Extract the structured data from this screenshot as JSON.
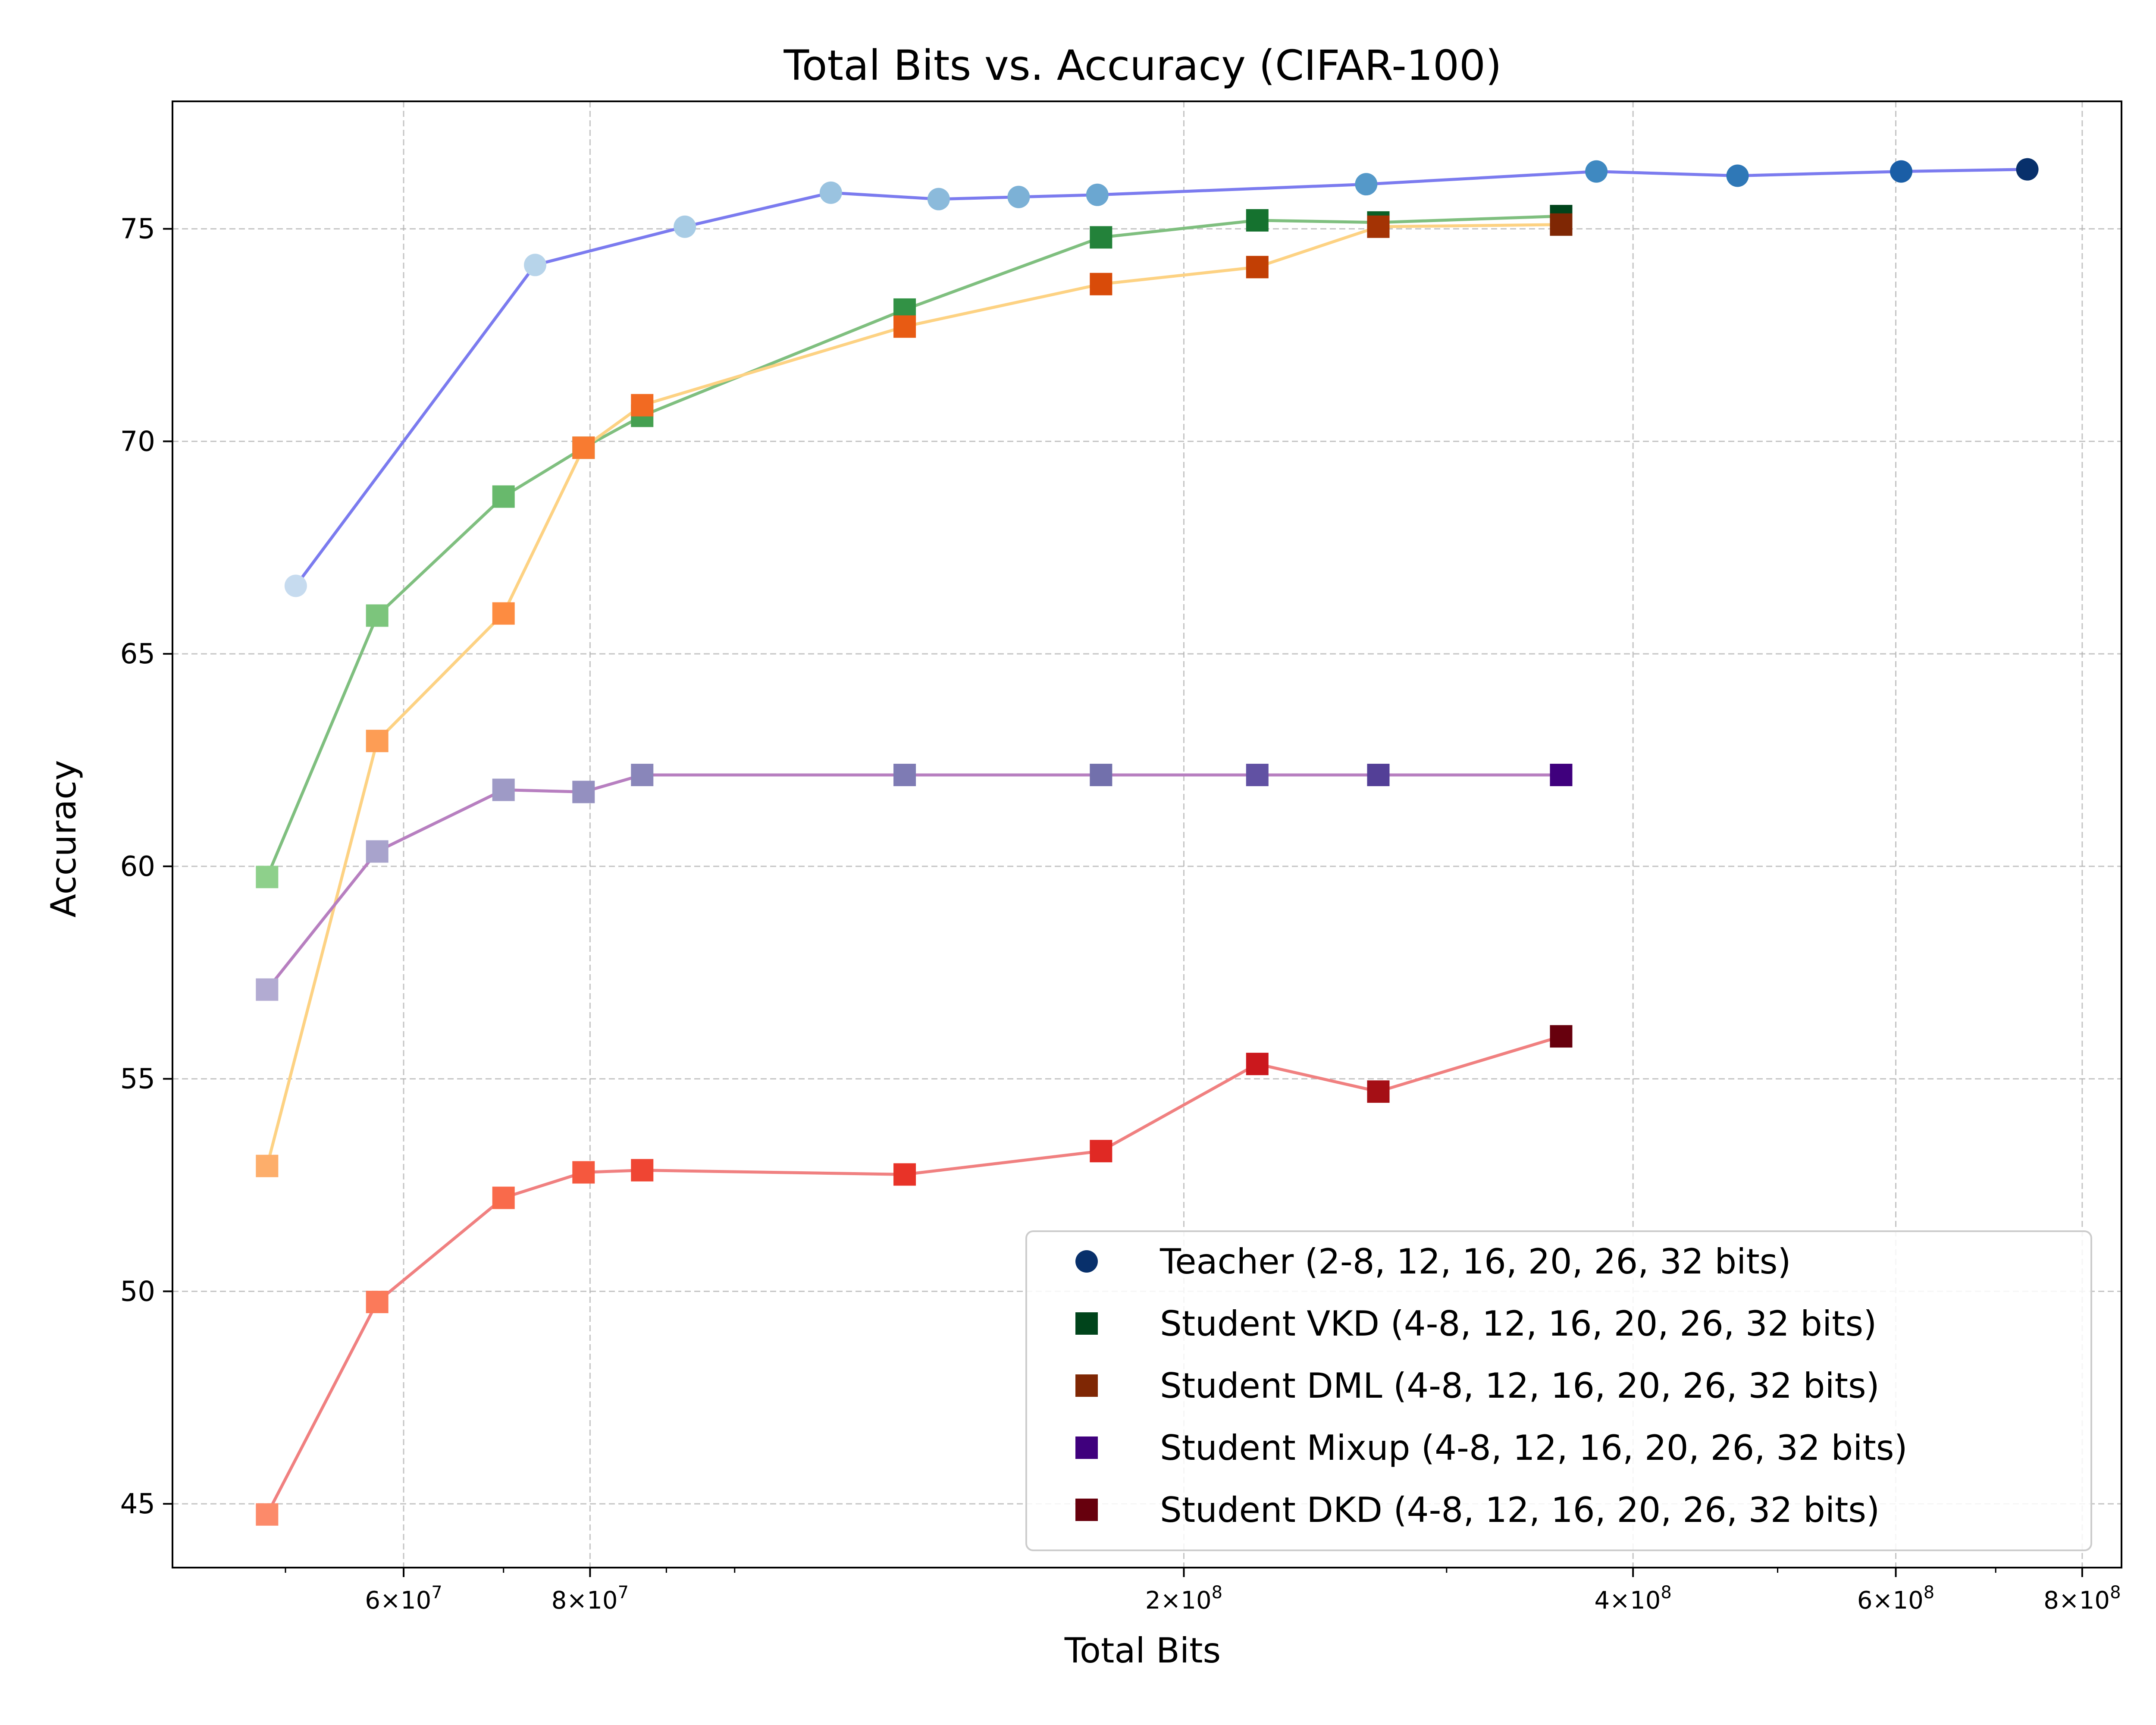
{
  "chart_data": {
    "type": "line",
    "title": "Total Bits vs. Accuracy (CIFAR-100)",
    "xlabel": "Total Bits",
    "ylabel": "Accuracy",
    "xscale": "log",
    "xlim": [
      42000000,
      850000000
    ],
    "ylim": [
      43.5,
      78.0
    ],
    "grid": true,
    "legend_position": "lower-right",
    "yticks": [
      45,
      50,
      55,
      60,
      65,
      70,
      75
    ],
    "xticks": [
      {
        "value": 60000000,
        "mant": "6",
        "exp": "7"
      },
      {
        "value": 80000000,
        "mant": "8",
        "exp": "7"
      },
      {
        "value": 200000000,
        "mant": "2",
        "exp": "8"
      },
      {
        "value": 400000000,
        "mant": "4",
        "exp": "8"
      },
      {
        "value": 600000000,
        "mant": "6",
        "exp": "8"
      },
      {
        "value": 800000000,
        "mant": "8",
        "exp": "8"
      }
    ],
    "series": [
      {
        "name": "Teacher (2-8, 12, 16, 20, 26, 32 bits)",
        "marker": "circle",
        "line_color": "#7b7bef",
        "legend_color": "#08306b",
        "x": [
          50800000,
          73500000,
          92600000,
          116000000,
          137000000,
          155000000,
          175000000,
          265000000,
          378000000,
          470000000,
          605000000,
          735000000
        ],
        "y": [
          66.6,
          74.15,
          75.05,
          75.85,
          75.7,
          75.75,
          75.8,
          76.05,
          76.35,
          76.25,
          76.35,
          76.4
        ],
        "colors": [
          "#c6dbef",
          "#b7d4ea",
          "#a8cce5",
          "#9ac3e0",
          "#8bbadb",
          "#7cb1d6",
          "#6ba7d1",
          "#5599c9",
          "#3f89c1",
          "#2f78b7",
          "#1a5ea6",
          "#08306b"
        ]
      },
      {
        "name": "Student VKD (4-8, 12, 16, 20, 26, 32 bits)",
        "marker": "square",
        "line_color": "#7fbf7f",
        "legend_color": "#00441b",
        "x": [
          48600000,
          57600000,
          70000000,
          79200000,
          86700000,
          130000000,
          176000000,
          224000000,
          270000000,
          358000000
        ],
        "y": [
          59.75,
          65.9,
          68.7,
          69.85,
          70.6,
          73.1,
          74.8,
          75.2,
          75.15,
          75.3
        ],
        "colors": [
          "#8ed08b",
          "#7cc57c",
          "#68b96c",
          "#55ad5e",
          "#45a051",
          "#329245",
          "#23823a",
          "#15722f",
          "#0b5f26",
          "#00441b"
        ]
      },
      {
        "name": "Student DML (4-8, 12, 16, 20, 26, 32 bits)",
        "marker": "square",
        "line_color": "#fdd283",
        "legend_color": "#7f2704",
        "x": [
          48600000,
          57600000,
          70000000,
          79200000,
          86700000,
          130000000,
          176000000,
          224000000,
          270000000,
          358000000
        ],
        "y": [
          52.95,
          62.95,
          65.95,
          69.85,
          70.85,
          72.7,
          73.7,
          74.1,
          75.05,
          75.1
        ],
        "colors": [
          "#fdae6b",
          "#fd9d55",
          "#fd8c41",
          "#f87b31",
          "#f26a22",
          "#e85b13",
          "#d94b09",
          "#c23f04",
          "#a43304",
          "#7f2704"
        ]
      },
      {
        "name": "Student Mixup (4-8, 12, 16, 20, 26, 32 bits)",
        "marker": "square",
        "line_color": "#b77fc0",
        "legend_color": "#3f007d",
        "x": [
          48600000,
          57600000,
          70000000,
          79200000,
          86700000,
          130000000,
          176000000,
          224000000,
          270000000,
          358000000
        ],
        "y": [
          57.1,
          60.35,
          61.8,
          61.75,
          62.15,
          62.15,
          62.15,
          62.15,
          62.15,
          62.15
        ],
        "colors": [
          "#b2abd2",
          "#a8a3cc",
          "#9e9ac6",
          "#9490c0",
          "#8986ba",
          "#7e7bb4",
          "#7270ac",
          "#6151a3",
          "#533f97",
          "#3f007d"
        ]
      },
      {
        "name": "Student DKD (4-8, 12, 16, 20, 26, 32 bits)",
        "marker": "square",
        "line_color": "#f08080",
        "legend_color": "#67000d",
        "x": [
          48600000,
          57600000,
          70000000,
          79200000,
          86700000,
          130000000,
          176000000,
          224000000,
          270000000,
          358000000
        ],
        "y": [
          44.75,
          49.75,
          52.2,
          52.8,
          52.85,
          52.75,
          53.3,
          55.35,
          54.7,
          56.0
        ],
        "colors": [
          "#fc8a6a",
          "#fb7a5a",
          "#f96a4b",
          "#f5583e",
          "#ef4533",
          "#e83328",
          "#e02924",
          "#cb181d",
          "#a50f15",
          "#67000d"
        ]
      }
    ]
  }
}
